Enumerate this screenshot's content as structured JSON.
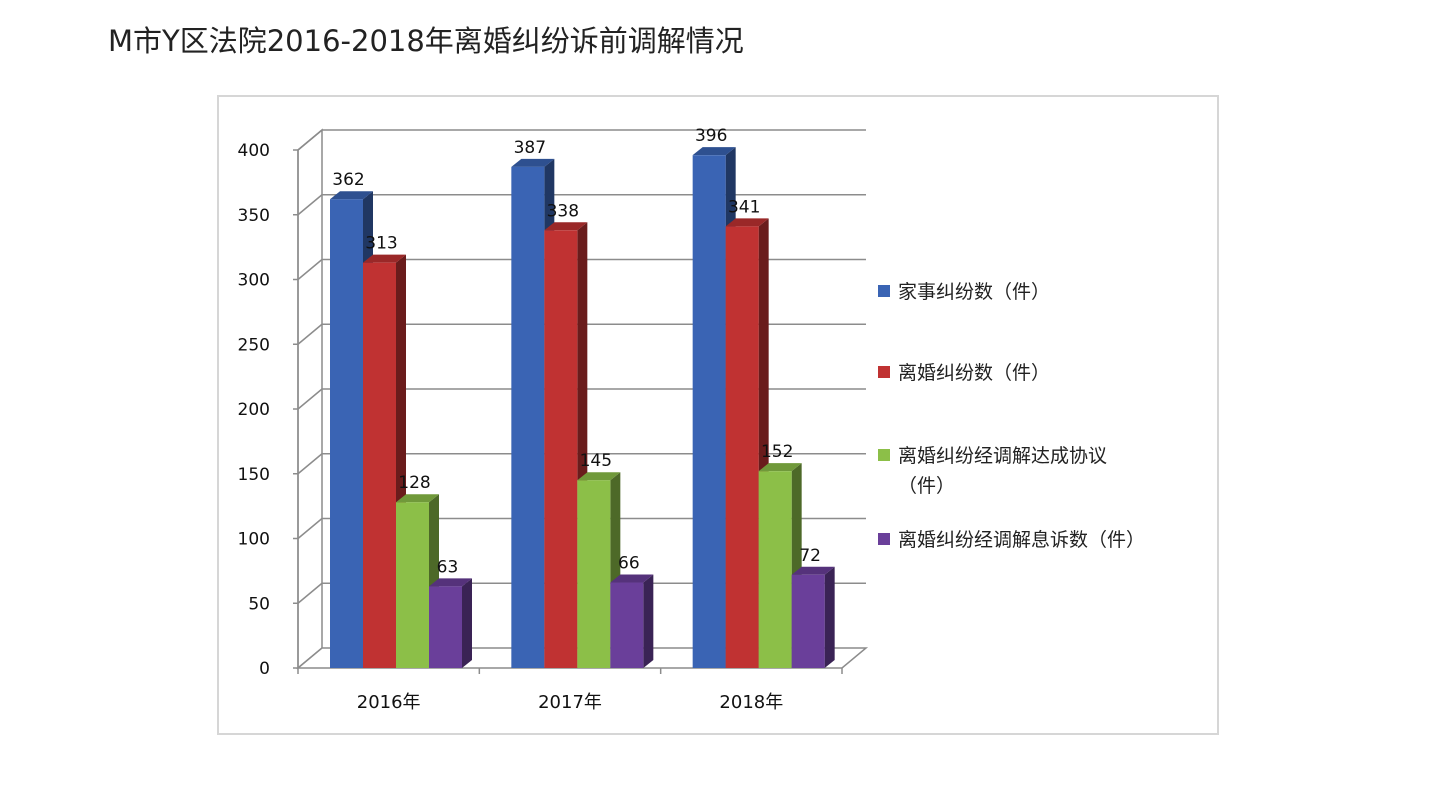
{
  "page": {
    "title": "M市Y区法院2016-2018年离婚纠纷诉前调解情况"
  },
  "chart_data": {
    "type": "bar",
    "title": "M市Y区法院2016-2018年离婚纠纷诉前调解情况",
    "categories": [
      "2016年",
      "2017年",
      "2018年"
    ],
    "series": [
      {
        "name": "家事纠纷数（件）",
        "values": [
          362,
          387,
          396
        ],
        "color": "#3a64b4"
      },
      {
        "name": "离婚纠纷数（件）",
        "values": [
          313,
          338,
          341
        ],
        "color": "#c03232"
      },
      {
        "name": "离婚纠纷经调解达成协议（件）",
        "name_lines": [
          "离婚纠纷经调解达成协议",
          "（件）"
        ],
        "values": [
          128,
          145,
          152
        ],
        "color": "#8cbf48"
      },
      {
        "name": "离婚纠纷经调解息诉数（件）",
        "values": [
          63,
          66,
          72
        ],
        "color": "#6a3f9a"
      }
    ],
    "ylim": [
      0,
      400
    ],
    "yticks": [
      0,
      50,
      100,
      150,
      200,
      250,
      300,
      350,
      400
    ],
    "grid": true,
    "legend": "right",
    "style": "3d-clustered-column"
  }
}
